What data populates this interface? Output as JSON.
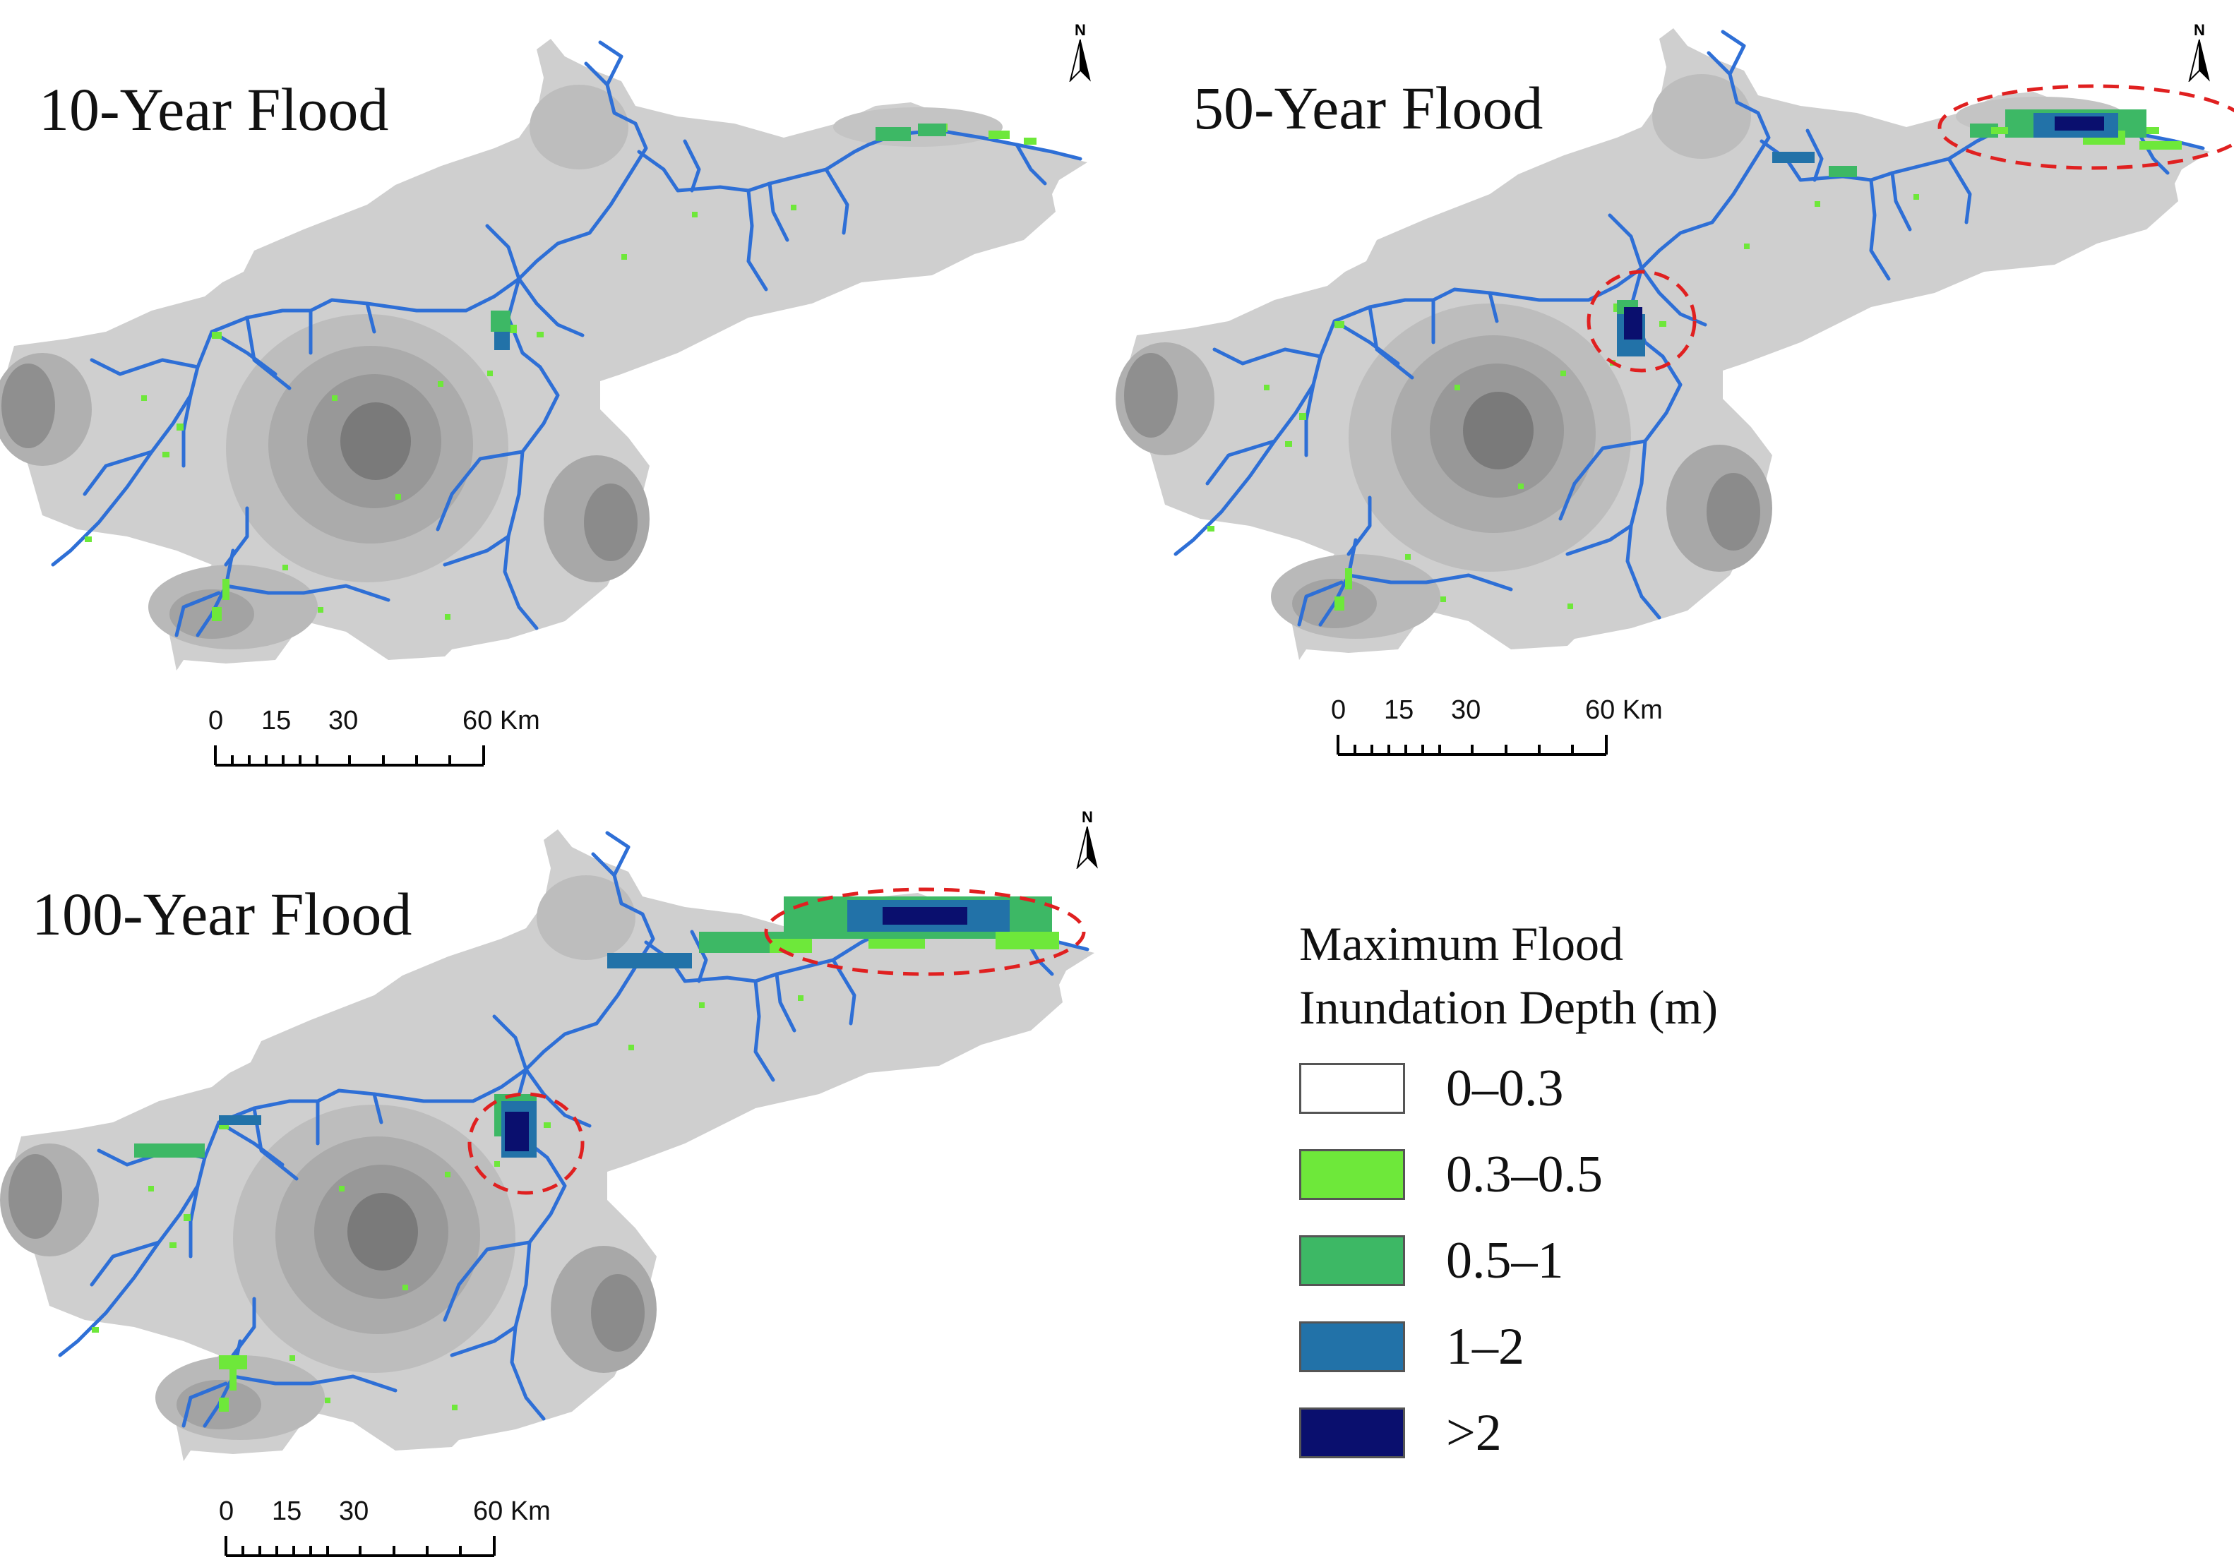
{
  "figure": {
    "panels": [
      {
        "title": "10-Year Flood",
        "north_label": "N",
        "scale": {
          "ticks": [
            "0",
            "15",
            "30",
            "60 Km"
          ]
        }
      },
      {
        "title": "50-Year Flood",
        "north_label": "N",
        "scale": {
          "ticks": [
            "0",
            "15",
            "30",
            "60 Km"
          ]
        }
      },
      {
        "title": "100-Year Flood",
        "north_label": "N",
        "scale": {
          "ticks": [
            "0",
            "15",
            "30",
            "60 Km"
          ]
        }
      }
    ],
    "legend": {
      "title_line1": "Maximum Flood",
      "title_line2": "Inundation Depth (m)",
      "items": [
        {
          "label": "0–0.3",
          "color": "#ffffff"
        },
        {
          "label": "0.3–0.5",
          "color": "#6ee83a"
        },
        {
          "label": "0.5–1",
          "color": "#3db865"
        },
        {
          "label": "1–2",
          "color": "#2272a8"
        },
        {
          "label": ">2",
          "color": "#0a0f6e"
        }
      ]
    },
    "colors": {
      "terrain_light": "#cfcfcf",
      "terrain_mid": "#b5b5b5",
      "terrain_dark": "#8f8f8f",
      "terrain_darkest": "#6c6c6c",
      "river": "#2e6fd6",
      "highlight_circle": "#e02020"
    }
  }
}
